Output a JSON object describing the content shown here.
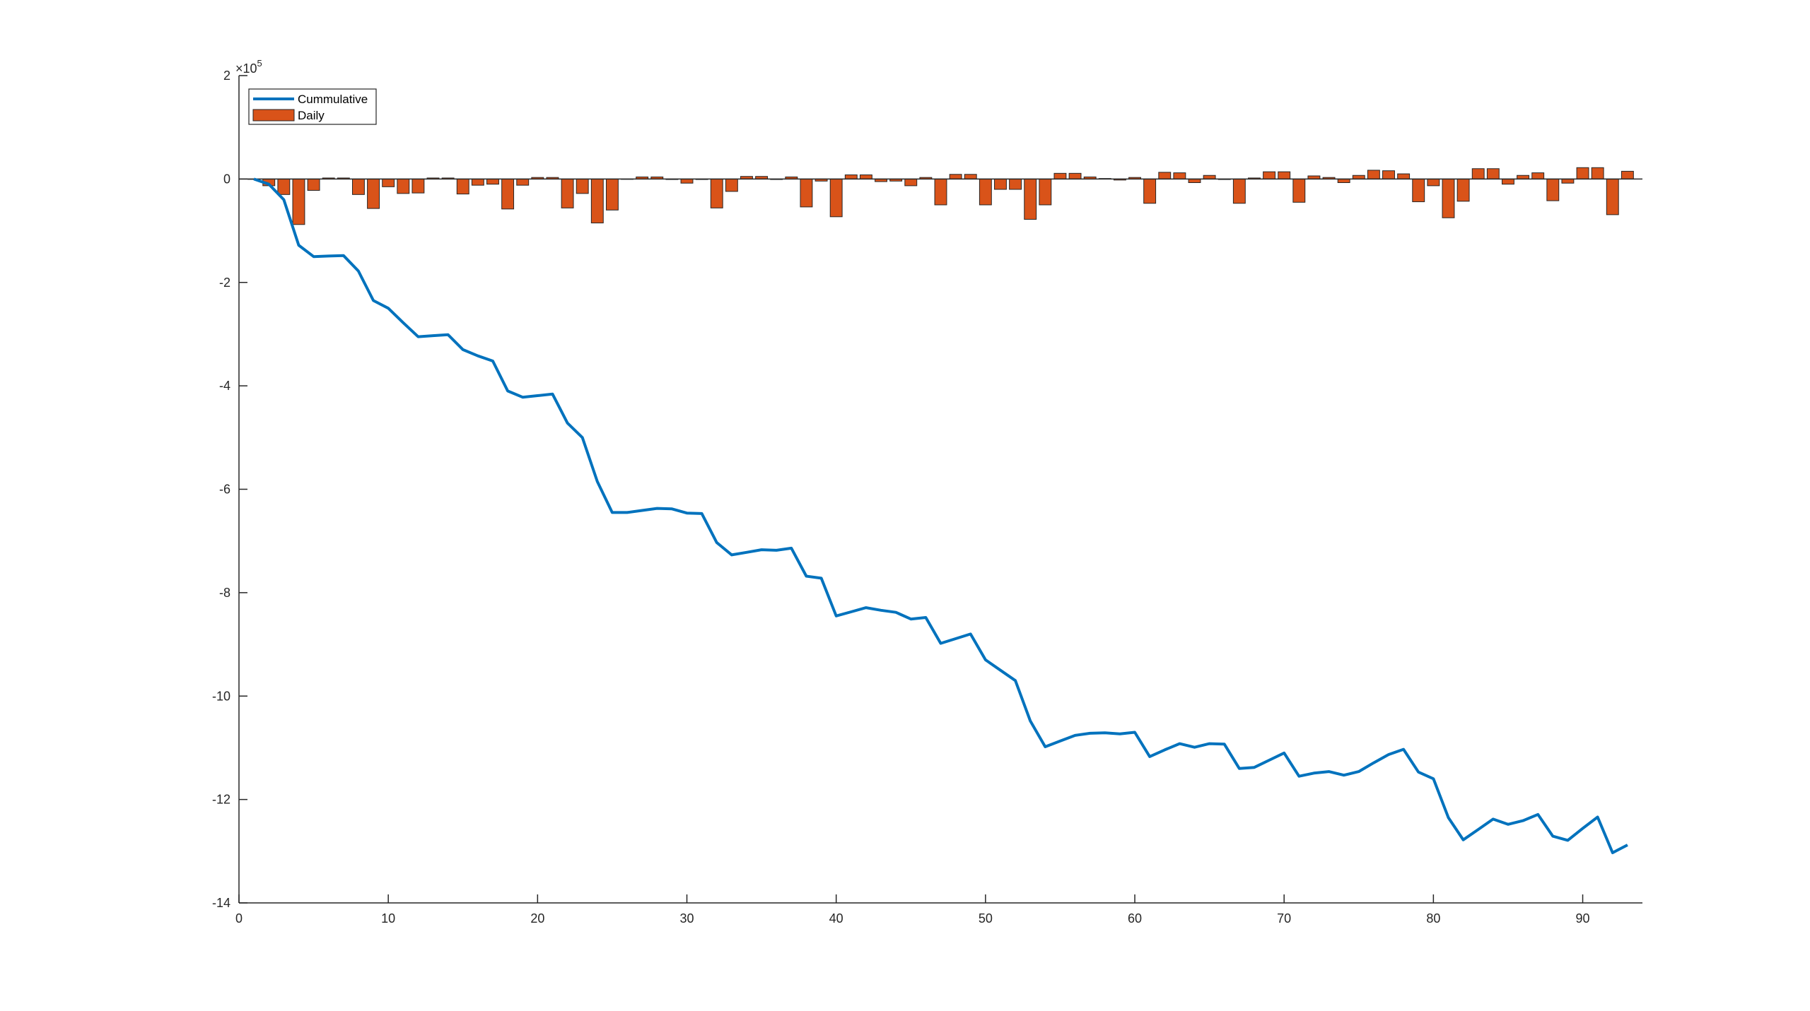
{
  "colors": {
    "cumulative": "#0072BD",
    "daily": "#D95319",
    "axis": "#262626"
  },
  "chart_data": {
    "type": "bar",
    "title": "",
    "xlabel": "",
    "ylabel": "",
    "xlim": [
      0,
      94
    ],
    "ylim": [
      -14,
      2
    ],
    "y_exponent_label": "×10",
    "y_exponent_power": "5",
    "x_ticks": [
      0,
      10,
      20,
      30,
      40,
      50,
      60,
      70,
      80,
      90
    ],
    "x_tick_labels": [
      "0",
      "10",
      "20",
      "30",
      "40",
      "50",
      "60",
      "70",
      "80",
      "90"
    ],
    "y_ticks": [
      2,
      0,
      -2,
      -4,
      -6,
      -8,
      -10,
      -12,
      -14
    ],
    "y_tick_labels": [
      "2",
      "0",
      "-2",
      "-4",
      "-6",
      "-8",
      "-10",
      "-12",
      "-14"
    ],
    "legend_position": "top-left",
    "grid": false,
    "series": [
      {
        "name": "Cummulative",
        "type": "line",
        "x": [
          1,
          2,
          3,
          4,
          5,
          6,
          7,
          8,
          9,
          10,
          11,
          12,
          13,
          14,
          15,
          16,
          17,
          18,
          19,
          20,
          21,
          22,
          23,
          24,
          25,
          26,
          27,
          28,
          29,
          30,
          31,
          32,
          33,
          34,
          35,
          36,
          37,
          38,
          39,
          40,
          41,
          42,
          43,
          44,
          45,
          46,
          47,
          48,
          49,
          50,
          51,
          52,
          53,
          54,
          55,
          56,
          57,
          58,
          59,
          60,
          61,
          62,
          63,
          64,
          65,
          66,
          67,
          68,
          69,
          70,
          71,
          72,
          73,
          74,
          75,
          76,
          77,
          78,
          79,
          80,
          81,
          82,
          83,
          84,
          85,
          86,
          87,
          88,
          89,
          90,
          91,
          92,
          93
        ],
        "values": [
          0.0,
          -0.1,
          -0.4,
          -1.28,
          -1.5,
          -1.49,
          -1.48,
          -1.78,
          -2.35,
          -2.5,
          -2.78,
          -3.05,
          -3.03,
          -3.01,
          -3.3,
          -3.42,
          -3.52,
          -4.1,
          -4.22,
          -4.19,
          -4.16,
          -4.72,
          -5.0,
          -5.85,
          -6.45,
          -6.45,
          -6.41,
          -6.37,
          -6.38,
          -6.46,
          -6.47,
          -7.03,
          -7.27,
          -7.22,
          -7.17,
          -7.18,
          -7.14,
          -7.68,
          -7.72,
          -8.45,
          -8.37,
          -8.29,
          -8.34,
          -8.38,
          -8.51,
          -8.48,
          -8.98,
          -8.89,
          -8.8,
          -9.3,
          -9.5,
          -9.7,
          -10.48,
          -10.98,
          -10.87,
          -10.76,
          -10.72,
          -10.71,
          -10.73,
          -10.7,
          -11.17,
          -11.04,
          -10.92,
          -10.99,
          -10.92,
          -10.93,
          -11.4,
          -11.38,
          -11.24,
          -11.1,
          -11.55,
          -11.49,
          -11.46,
          -11.53,
          -11.46,
          -11.29,
          -11.13,
          -11.03,
          -11.47,
          -11.6,
          -12.35,
          -12.78,
          -12.58,
          -12.38,
          -12.48,
          -12.41,
          -12.29,
          -12.71,
          -12.79,
          -12.56,
          -12.34,
          -13.03,
          -12.88
        ]
      },
      {
        "name": "Daily",
        "type": "bar",
        "x": [
          1,
          2,
          3,
          4,
          5,
          6,
          7,
          8,
          9,
          10,
          11,
          12,
          13,
          14,
          15,
          16,
          17,
          18,
          19,
          20,
          21,
          22,
          23,
          24,
          25,
          26,
          27,
          28,
          29,
          30,
          31,
          32,
          33,
          34,
          35,
          36,
          37,
          38,
          39,
          40,
          41,
          42,
          43,
          44,
          45,
          46,
          47,
          48,
          49,
          50,
          51,
          52,
          53,
          54,
          55,
          56,
          57,
          58,
          59,
          60,
          61,
          62,
          63,
          64,
          65,
          66,
          67,
          68,
          69,
          70,
          71,
          72,
          73,
          74,
          75,
          76,
          77,
          78,
          79,
          80,
          81,
          82,
          83,
          84,
          85,
          86,
          87,
          88,
          89,
          90,
          91,
          92,
          93
        ],
        "values": [
          0.0,
          -0.13,
          -0.3,
          -0.88,
          -0.22,
          0.02,
          0.02,
          -0.3,
          -0.57,
          -0.15,
          -0.28,
          -0.27,
          0.02,
          0.02,
          -0.29,
          -0.12,
          -0.1,
          -0.58,
          -0.12,
          0.03,
          0.03,
          -0.56,
          -0.28,
          -0.85,
          -0.6,
          0.0,
          0.04,
          0.04,
          -0.01,
          -0.08,
          -0.01,
          -0.56,
          -0.24,
          0.05,
          0.05,
          -0.01,
          0.04,
          -0.54,
          -0.04,
          -0.73,
          0.08,
          0.08,
          -0.05,
          -0.04,
          -0.13,
          0.03,
          -0.5,
          0.09,
          0.09,
          -0.5,
          -0.2,
          -0.2,
          -0.78,
          -0.5,
          0.11,
          0.11,
          0.04,
          0.01,
          -0.02,
          0.03,
          -0.47,
          0.13,
          0.12,
          -0.07,
          0.07,
          -0.01,
          -0.47,
          0.02,
          0.14,
          0.14,
          -0.45,
          0.06,
          0.03,
          -0.07,
          0.07,
          0.17,
          0.16,
          0.1,
          -0.44,
          -0.13,
          -0.75,
          -0.43,
          0.2,
          0.2,
          -0.1,
          0.07,
          0.12,
          -0.42,
          -0.08,
          0.22,
          0.22,
          -0.69,
          0.15
        ]
      }
    ]
  }
}
